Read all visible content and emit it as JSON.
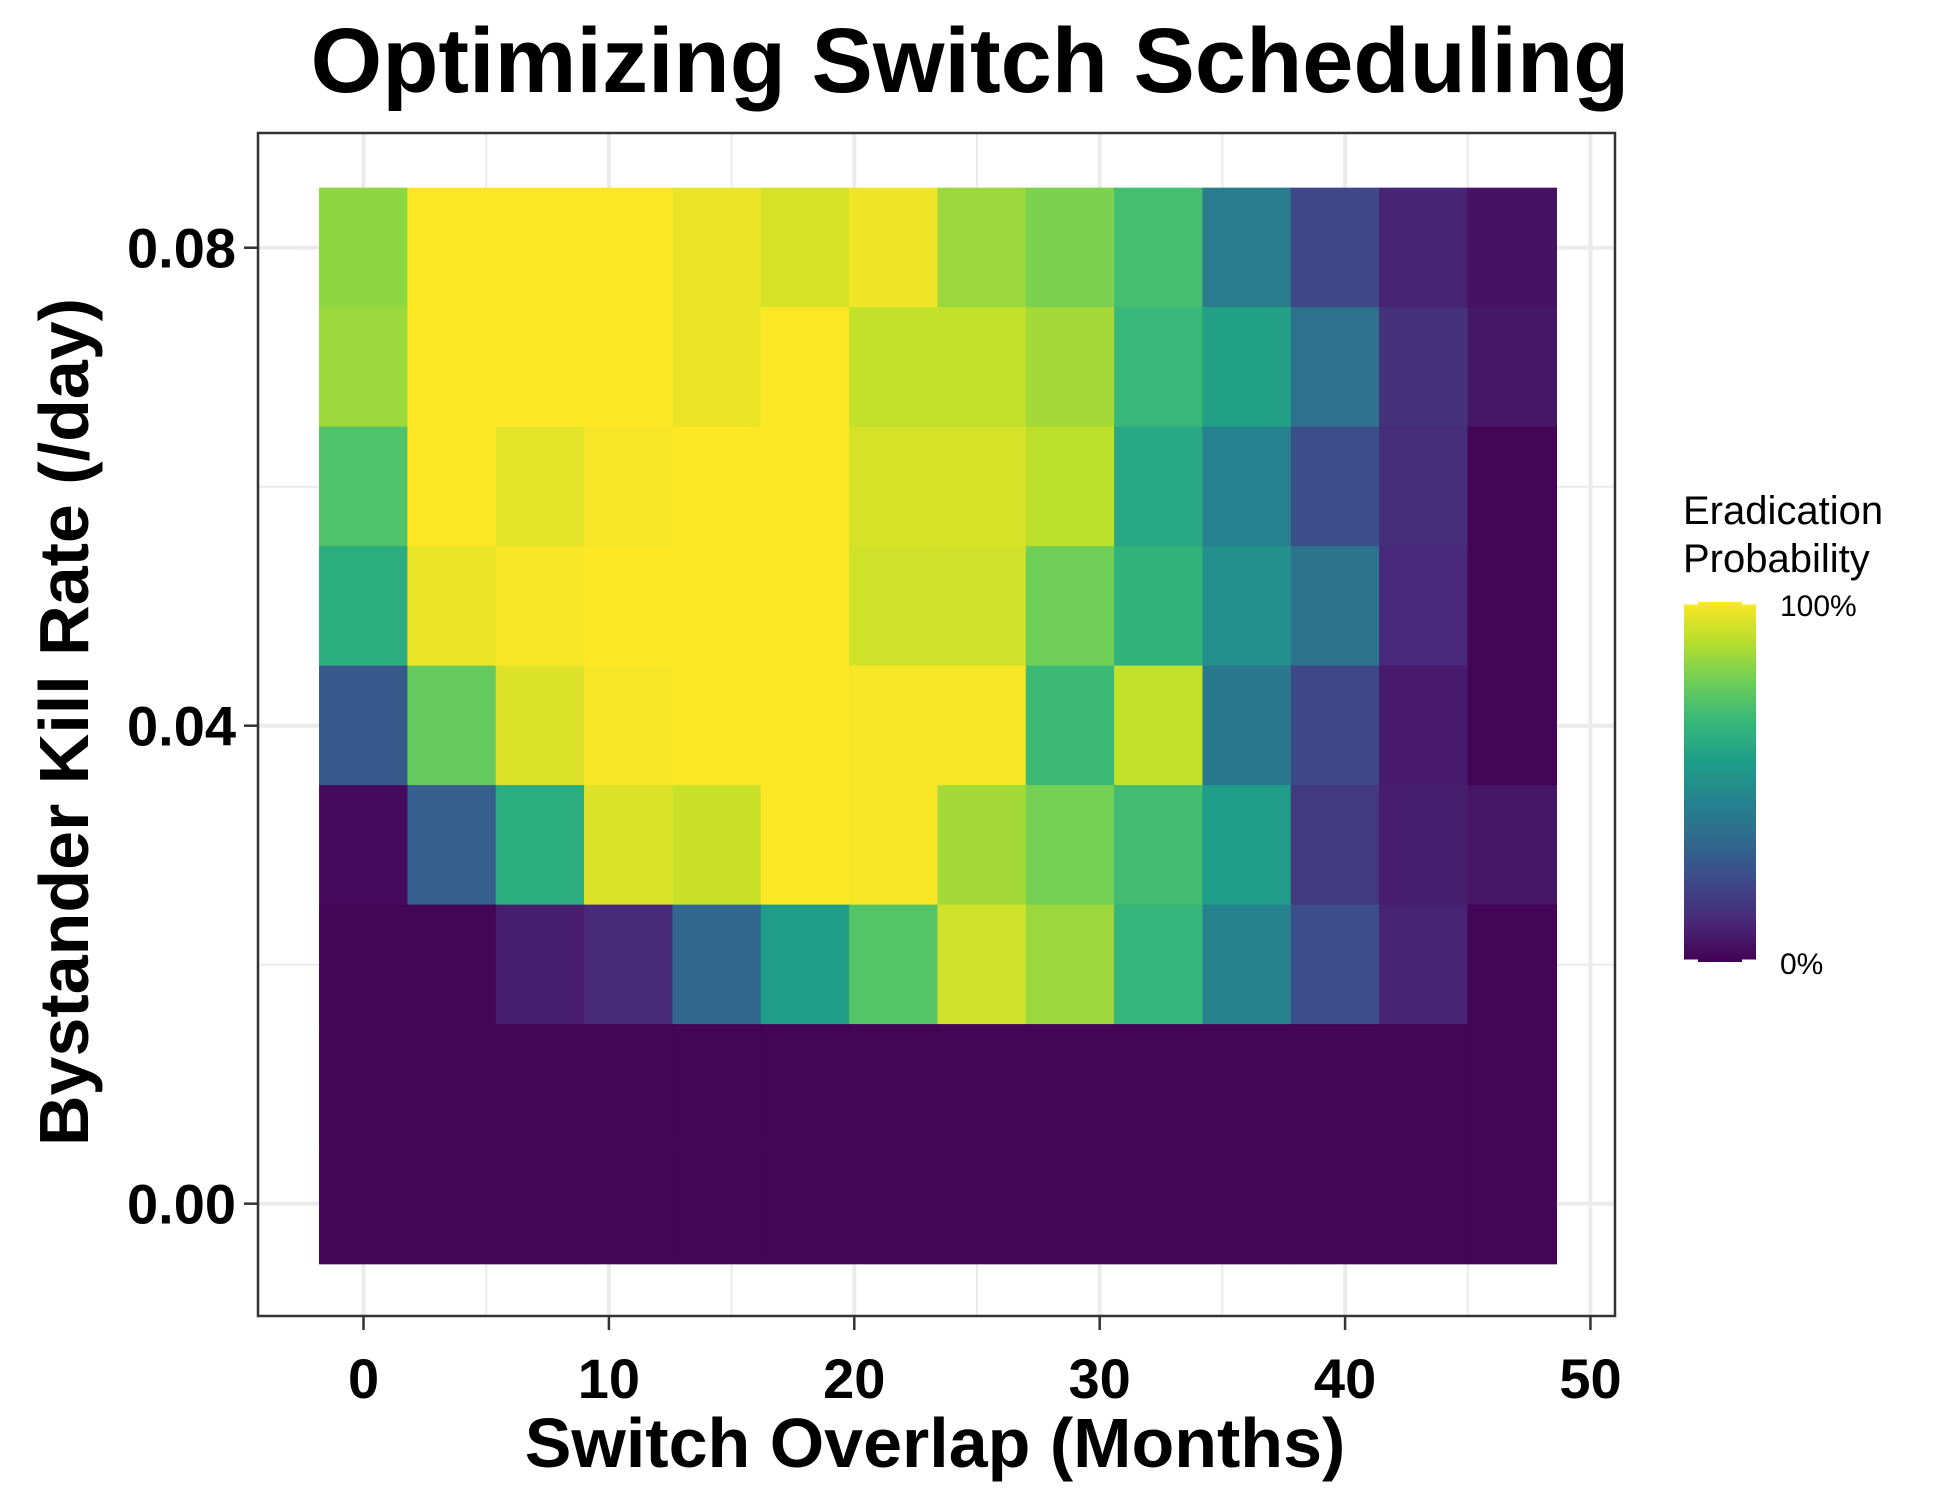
{
  "chart_data": {
    "type": "heatmap",
    "title": "Optimizing Switch Scheduling",
    "xlabel": "Switch Overlap (Months)",
    "ylabel": "Bystander Kill Rate (/day)",
    "xlim": [
      -4.3,
      51.0
    ],
    "ylim": [
      -0.0094,
      0.0896
    ],
    "x_ticks": [
      0,
      10,
      20,
      30,
      40,
      50
    ],
    "x_tick_labels": [
      "0",
      "10",
      "20",
      "30",
      "40",
      "50"
    ],
    "y_ticks": [
      0.0,
      0.04,
      0.08
    ],
    "y_tick_labels": [
      "0.00",
      "0.04",
      "0.08"
    ],
    "grid": true,
    "x": [
      0,
      3.6,
      7.2,
      10.8,
      14.4,
      18.0,
      21.6,
      25.2,
      28.8,
      32.4,
      36.0,
      39.6,
      43.2,
      46.8
    ],
    "y": [
      0.08,
      0.07,
      0.06,
      0.05,
      0.04,
      0.03,
      0.02,
      0.01,
      0.0
    ],
    "values": [
      [
        0.83,
        1.0,
        1.0,
        1.0,
        0.97,
        0.94,
        0.98,
        0.85,
        0.8,
        0.7,
        0.42,
        0.22,
        0.1,
        0.05
      ],
      [
        0.85,
        1.0,
        1.0,
        1.0,
        0.97,
        1.0,
        0.91,
        0.91,
        0.86,
        0.67,
        0.57,
        0.37,
        0.14,
        0.06
      ],
      [
        0.72,
        1.0,
        0.96,
        0.99,
        1.0,
        1.0,
        0.94,
        0.94,
        0.9,
        0.6,
        0.44,
        0.24,
        0.13,
        0.01
      ],
      [
        0.62,
        0.97,
        0.99,
        1.0,
        1.0,
        1.0,
        0.93,
        0.93,
        0.78,
        0.65,
        0.5,
        0.38,
        0.11,
        0.01
      ],
      [
        0.28,
        0.76,
        0.95,
        0.99,
        1.0,
        1.0,
        0.99,
        0.99,
        0.68,
        0.91,
        0.4,
        0.22,
        0.07,
        0.01
      ],
      [
        0.03,
        0.3,
        0.62,
        0.95,
        0.92,
        1.0,
        0.99,
        0.86,
        0.79,
        0.69,
        0.55,
        0.17,
        0.08,
        0.06
      ],
      [
        0.01,
        0.01,
        0.08,
        0.12,
        0.33,
        0.55,
        0.73,
        0.93,
        0.85,
        0.66,
        0.45,
        0.24,
        0.1,
        0.01
      ],
      [
        0.01,
        0.01,
        0.01,
        0.01,
        0.01,
        0.01,
        0.01,
        0.01,
        0.01,
        0.01,
        0.01,
        0.01,
        0.01,
        0.01
      ],
      [
        0.01,
        0.01,
        0.01,
        0.01,
        0.01,
        0.01,
        0.01,
        0.01,
        0.01,
        0.01,
        0.01,
        0.01,
        0.01,
        0.01
      ]
    ],
    "value_range": [
      0,
      1
    ],
    "colorscale": "viridis",
    "colorscale_stops": [
      "#440154",
      "#482878",
      "#3e4989",
      "#31688e",
      "#26828e",
      "#1f9e89",
      "#35b779",
      "#6ece58",
      "#b5de2b",
      "#fde725"
    ],
    "legend": {
      "title_line1": "Eradication",
      "title_line2": "Probability",
      "max_label": "100%",
      "min_label": "0%",
      "position": "right"
    },
    "colors": {
      "panel_border": "#333333",
      "grid": "#ebebeb",
      "tick": "#333333"
    }
  }
}
